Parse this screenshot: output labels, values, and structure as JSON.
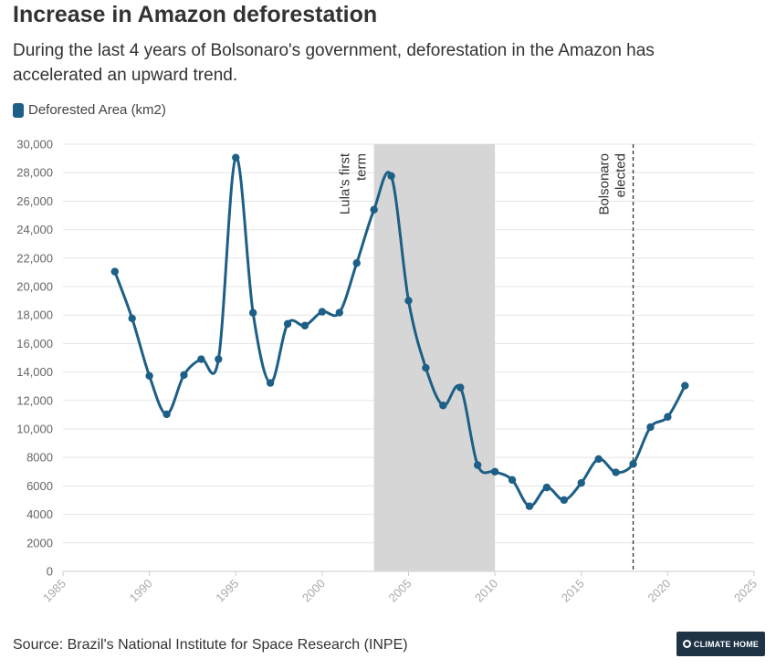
{
  "header": {
    "title": "Increase in Amazon deforestation",
    "subtitle": "During the last 4 years of Bolsonaro's government, deforestation in the Amazon has accelerated an upward trend."
  },
  "legend": {
    "label": "Deforested Area (km2)"
  },
  "footer": {
    "source": "Source: Brazil's National Institute for Space Research (INPE)",
    "logo_text": "CLIMATE HOME"
  },
  "colors": {
    "series": "#1d5f86",
    "band": "#d6d6d6",
    "grid": "#e5e5e5",
    "text": "#333333",
    "logo_bg": "#1f3347"
  },
  "chart_data": {
    "type": "line",
    "title": "Increase in Amazon deforestation",
    "xlabel": "",
    "ylabel": "",
    "xlim": [
      1985,
      2025
    ],
    "ylim": [
      0,
      30000
    ],
    "x_ticks": [
      1985,
      1990,
      1995,
      2000,
      2005,
      2010,
      2015,
      2020,
      2025
    ],
    "y_ticks": [
      0,
      2000,
      4000,
      6000,
      8000,
      10000,
      12000,
      14000,
      16000,
      18000,
      20000,
      22000,
      24000,
      26000,
      28000,
      30000
    ],
    "y_tick_labels": [
      "0",
      "2000",
      "4000",
      "6000",
      "8000",
      "10,000",
      "12,000",
      "14,000",
      "16,000",
      "18,000",
      "20,000",
      "22,000",
      "24,000",
      "26,000",
      "28,000",
      "30,000"
    ],
    "grid": true,
    "legend_position": "top-left",
    "series": [
      {
        "name": "Deforested Area (km2)",
        "x": [
          1988,
          1989,
          1990,
          1991,
          1992,
          1993,
          1994,
          1995,
          1996,
          1997,
          1998,
          1999,
          2000,
          2001,
          2002,
          2003,
          2004,
          2005,
          2006,
          2007,
          2008,
          2009,
          2010,
          2011,
          2012,
          2013,
          2014,
          2015,
          2016,
          2017,
          2018,
          2019,
          2020,
          2021
        ],
        "values": [
          21050,
          17770,
          13730,
          11030,
          13790,
          14900,
          14900,
          29060,
          18160,
          13230,
          17380,
          17260,
          18230,
          18170,
          21650,
          25400,
          27770,
          19010,
          14290,
          11650,
          12910,
          7460,
          7000,
          6420,
          4570,
          5890,
          5010,
          6210,
          7890,
          6950,
          7540,
          10130,
          10850,
          13040
        ]
      }
    ],
    "annotations": [
      {
        "type": "band",
        "x_start": 2003,
        "x_end": 2010,
        "label": "Lula's first term"
      },
      {
        "type": "vline",
        "x": 2018,
        "label": "Bolsonaro elected"
      }
    ]
  }
}
